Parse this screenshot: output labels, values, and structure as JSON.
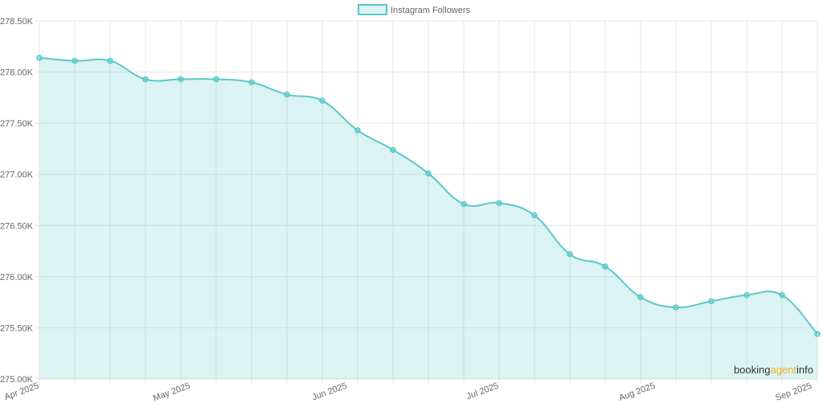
{
  "chart_data": {
    "type": "area",
    "series": [
      {
        "name": "Instagram Followers",
        "color": "#5ac8c8",
        "fill": "rgba(90,200,200,0.22)",
        "values": [
          278140,
          278110,
          278110,
          277930,
          277930,
          277930,
          277900,
          277780,
          277720,
          277430,
          277240,
          277010,
          276710,
          276720,
          276600,
          276220,
          276100,
          275800,
          275700,
          275760,
          275820,
          275820,
          275440
        ]
      }
    ],
    "x": [
      "2025-04-01",
      "2025-04-08",
      "2025-04-15",
      "2025-04-22",
      "2025-04-29",
      "2025-05-06",
      "2025-05-13",
      "2025-05-20",
      "2025-05-27",
      "2025-06-03",
      "2025-06-10",
      "2025-06-17",
      "2025-06-24",
      "2025-07-01",
      "2025-07-08",
      "2025-07-15",
      "2025-07-22",
      "2025-07-29",
      "2025-08-05",
      "2025-08-12",
      "2025-08-19",
      "2025-08-26",
      "2025-09-02"
    ],
    "x_tick_labels": [
      "Apr 2025",
      "May 2025",
      "Jun 2025",
      "Jul 2025",
      "Aug 2025",
      "Sep 2025"
    ],
    "y_tick_labels": [
      "278.50K",
      "278.00K",
      "277.50K",
      "277.00K",
      "276.50K",
      "276.00K",
      "275.50K",
      "275.00K"
    ],
    "ylim": [
      275000,
      278500
    ],
    "grid": true,
    "legend": "top-center",
    "title": "",
    "xlabel": "",
    "ylabel": ""
  },
  "watermark": {
    "part1": "booking",
    "part2": "agent",
    "part3": "info",
    "color1": "#333333",
    "color2": "#f0b41e",
    "color3": "#333333"
  }
}
